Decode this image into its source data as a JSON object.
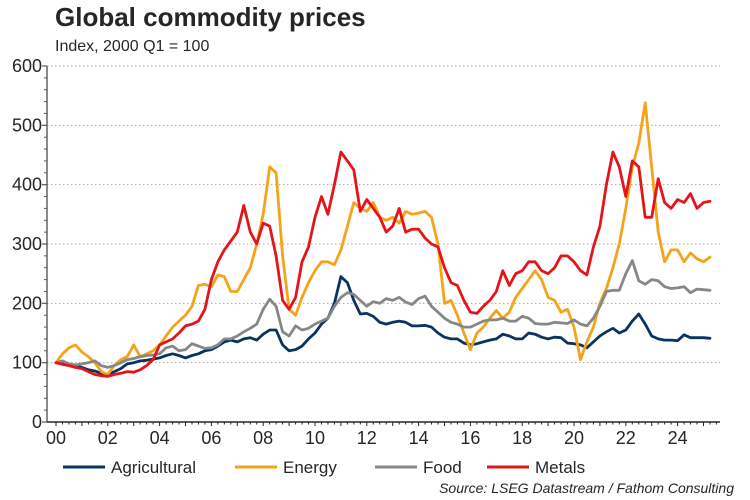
{
  "chart_data": {
    "type": "line",
    "title": "Global commodity prices",
    "subtitle": "Index, 2000 Q1 = 100",
    "xlabel": "",
    "ylabel": "",
    "source": "Source: LSEG Datastream / Fathom Consulting",
    "frequency": "quarterly",
    "x_start": "2000Q1",
    "x_range": [
      2000,
      2025.75
    ],
    "ylim": [
      0,
      600
    ],
    "yticks": [
      0,
      100,
      200,
      300,
      400,
      500,
      600
    ],
    "ytick_labels": [
      "0",
      "100",
      "200",
      "300",
      "400",
      "500",
      "600"
    ],
    "xticks": [
      2000,
      2002,
      2004,
      2006,
      2008,
      2010,
      2012,
      2014,
      2016,
      2018,
      2020,
      2022,
      2024
    ],
    "xtick_labels": [
      "00",
      "02",
      "04",
      "06",
      "08",
      "10",
      "12",
      "14",
      "16",
      "18",
      "20",
      "22",
      "24"
    ],
    "grid": "horizontal-dotted",
    "legend_position": "bottom",
    "series": [
      {
        "name": "Agricultural",
        "color": "#0b3360",
        "values": [
          100,
          98,
          96,
          94,
          92,
          88,
          86,
          82,
          80,
          85,
          90,
          98,
          100,
          103,
          104,
          106,
          108,
          112,
          115,
          112,
          108,
          112,
          115,
          120,
          122,
          128,
          135,
          138,
          135,
          140,
          142,
          138,
          148,
          155,
          155,
          130,
          120,
          122,
          128,
          140,
          150,
          165,
          175,
          200,
          245,
          235,
          205,
          182,
          183,
          178,
          168,
          165,
          168,
          170,
          168,
          162,
          162,
          163,
          160,
          150,
          143,
          140,
          140,
          133,
          130,
          132,
          135,
          138,
          140,
          148,
          145,
          140,
          140,
          150,
          148,
          143,
          140,
          143,
          142,
          133,
          132,
          130,
          125,
          135,
          145,
          152,
          158,
          150,
          155,
          170,
          182,
          165,
          145,
          140,
          138,
          138,
          137,
          147,
          142,
          142,
          142,
          141
        ]
      },
      {
        "name": "Energy",
        "color": "#f5a31a",
        "values": [
          100,
          115,
          125,
          130,
          118,
          110,
          100,
          85,
          80,
          95,
          105,
          110,
          130,
          110,
          115,
          120,
          130,
          145,
          160,
          170,
          180,
          195,
          230,
          232,
          228,
          248,
          245,
          220,
          220,
          240,
          260,
          300,
          350,
          430,
          420,
          280,
          190,
          180,
          210,
          235,
          255,
          270,
          270,
          265,
          290,
          330,
          370,
          360,
          355,
          370,
          345,
          340,
          345,
          335,
          355,
          350,
          352,
          355,
          345,
          300,
          200,
          205,
          180,
          150,
          122,
          150,
          160,
          175,
          188,
          175,
          185,
          210,
          225,
          240,
          255,
          240,
          210,
          205,
          185,
          190,
          160,
          105,
          135,
          160,
          200,
          225,
          260,
          300,
          360,
          430,
          470,
          538,
          430,
          320,
          270,
          290,
          290,
          270,
          285,
          275,
          270,
          278
        ]
      },
      {
        "name": "Food",
        "color": "#878787",
        "values": [
          100,
          103,
          98,
          96,
          98,
          100,
          103,
          95,
          92,
          95,
          100,
          105,
          107,
          110,
          112,
          113,
          115,
          125,
          128,
          120,
          122,
          132,
          128,
          124,
          125,
          130,
          140,
          140,
          145,
          152,
          158,
          165,
          190,
          207,
          195,
          152,
          145,
          162,
          155,
          158,
          165,
          170,
          175,
          195,
          210,
          218,
          215,
          205,
          195,
          203,
          200,
          208,
          205,
          210,
          202,
          198,
          208,
          212,
          195,
          185,
          175,
          168,
          165,
          160,
          160,
          165,
          170,
          172,
          172,
          175,
          170,
          170,
          178,
          175,
          166,
          165,
          165,
          168,
          167,
          166,
          172,
          165,
          162,
          175,
          195,
          220,
          222,
          222,
          250,
          272,
          238,
          232,
          240,
          238,
          228,
          225,
          226,
          228,
          218,
          224,
          223,
          222
        ]
      },
      {
        "name": "Metals",
        "color": "#e3151a",
        "values": [
          100,
          97,
          95,
          92,
          90,
          85,
          80,
          78,
          77,
          80,
          82,
          85,
          84,
          88,
          95,
          105,
          130,
          135,
          140,
          150,
          162,
          165,
          170,
          190,
          240,
          270,
          290,
          305,
          320,
          365,
          320,
          300,
          335,
          330,
          280,
          205,
          190,
          210,
          270,
          295,
          345,
          380,
          350,
          400,
          455,
          440,
          425,
          355,
          375,
          360,
          345,
          320,
          330,
          360,
          320,
          325,
          325,
          310,
          300,
          295,
          260,
          235,
          230,
          205,
          185,
          183,
          195,
          205,
          220,
          255,
          230,
          250,
          255,
          270,
          270,
          255,
          250,
          260,
          280,
          280,
          270,
          255,
          248,
          295,
          330,
          400,
          455,
          430,
          380,
          440,
          430,
          345,
          345,
          410,
          370,
          360,
          375,
          370,
          385,
          360,
          370,
          372
        ]
      }
    ]
  }
}
